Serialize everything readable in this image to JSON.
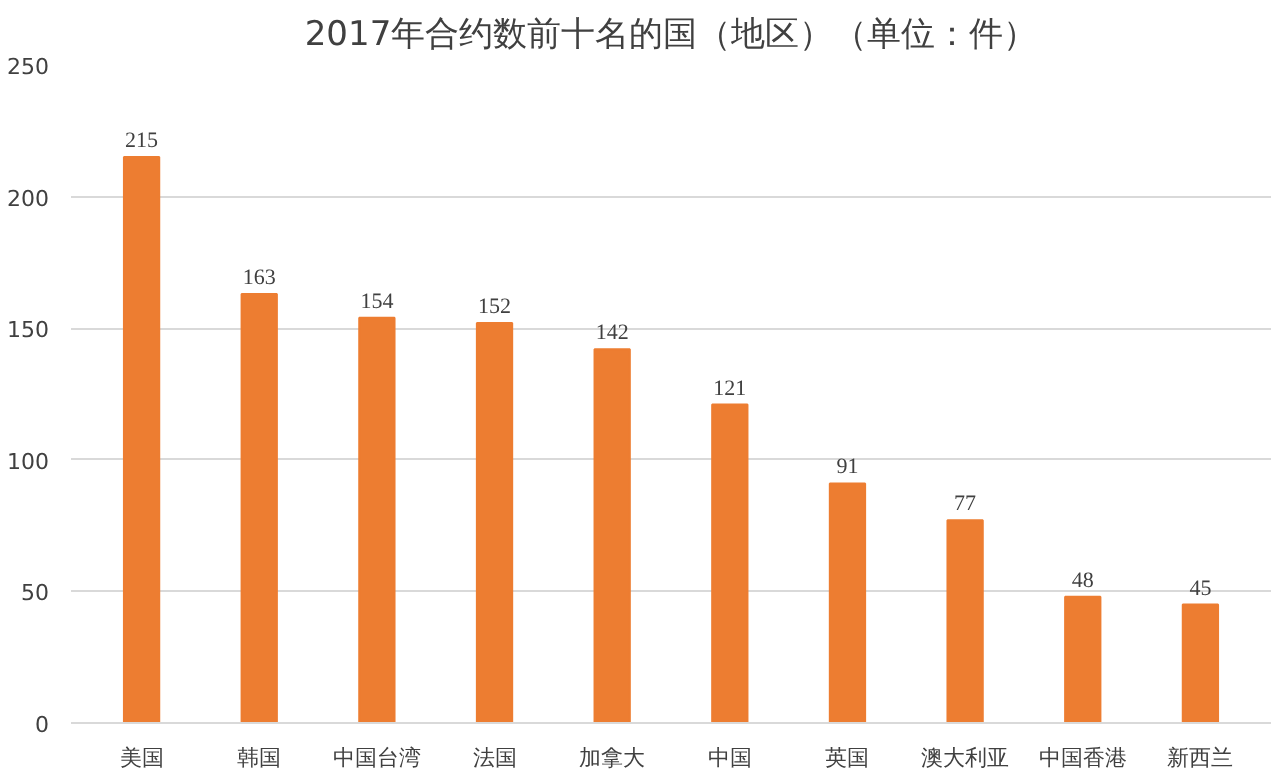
{
  "chart_data": {
    "type": "bar",
    "title": "2017年合约数前十名的国（地区）（单位：件）",
    "categories": [
      "美国",
      "韩国",
      "中国台湾",
      "法国",
      "加拿大",
      "中国",
      "英国",
      "澳大利亚",
      "中国香港",
      "新西兰"
    ],
    "values": [
      215,
      163,
      154,
      152,
      142,
      121,
      91,
      77,
      48,
      45
    ],
    "color": "#ed7d31",
    "ylim": [
      0,
      250
    ],
    "yticks": [
      0,
      50,
      100,
      150,
      200,
      250
    ],
    "grid": "y",
    "data_labels": true
  }
}
